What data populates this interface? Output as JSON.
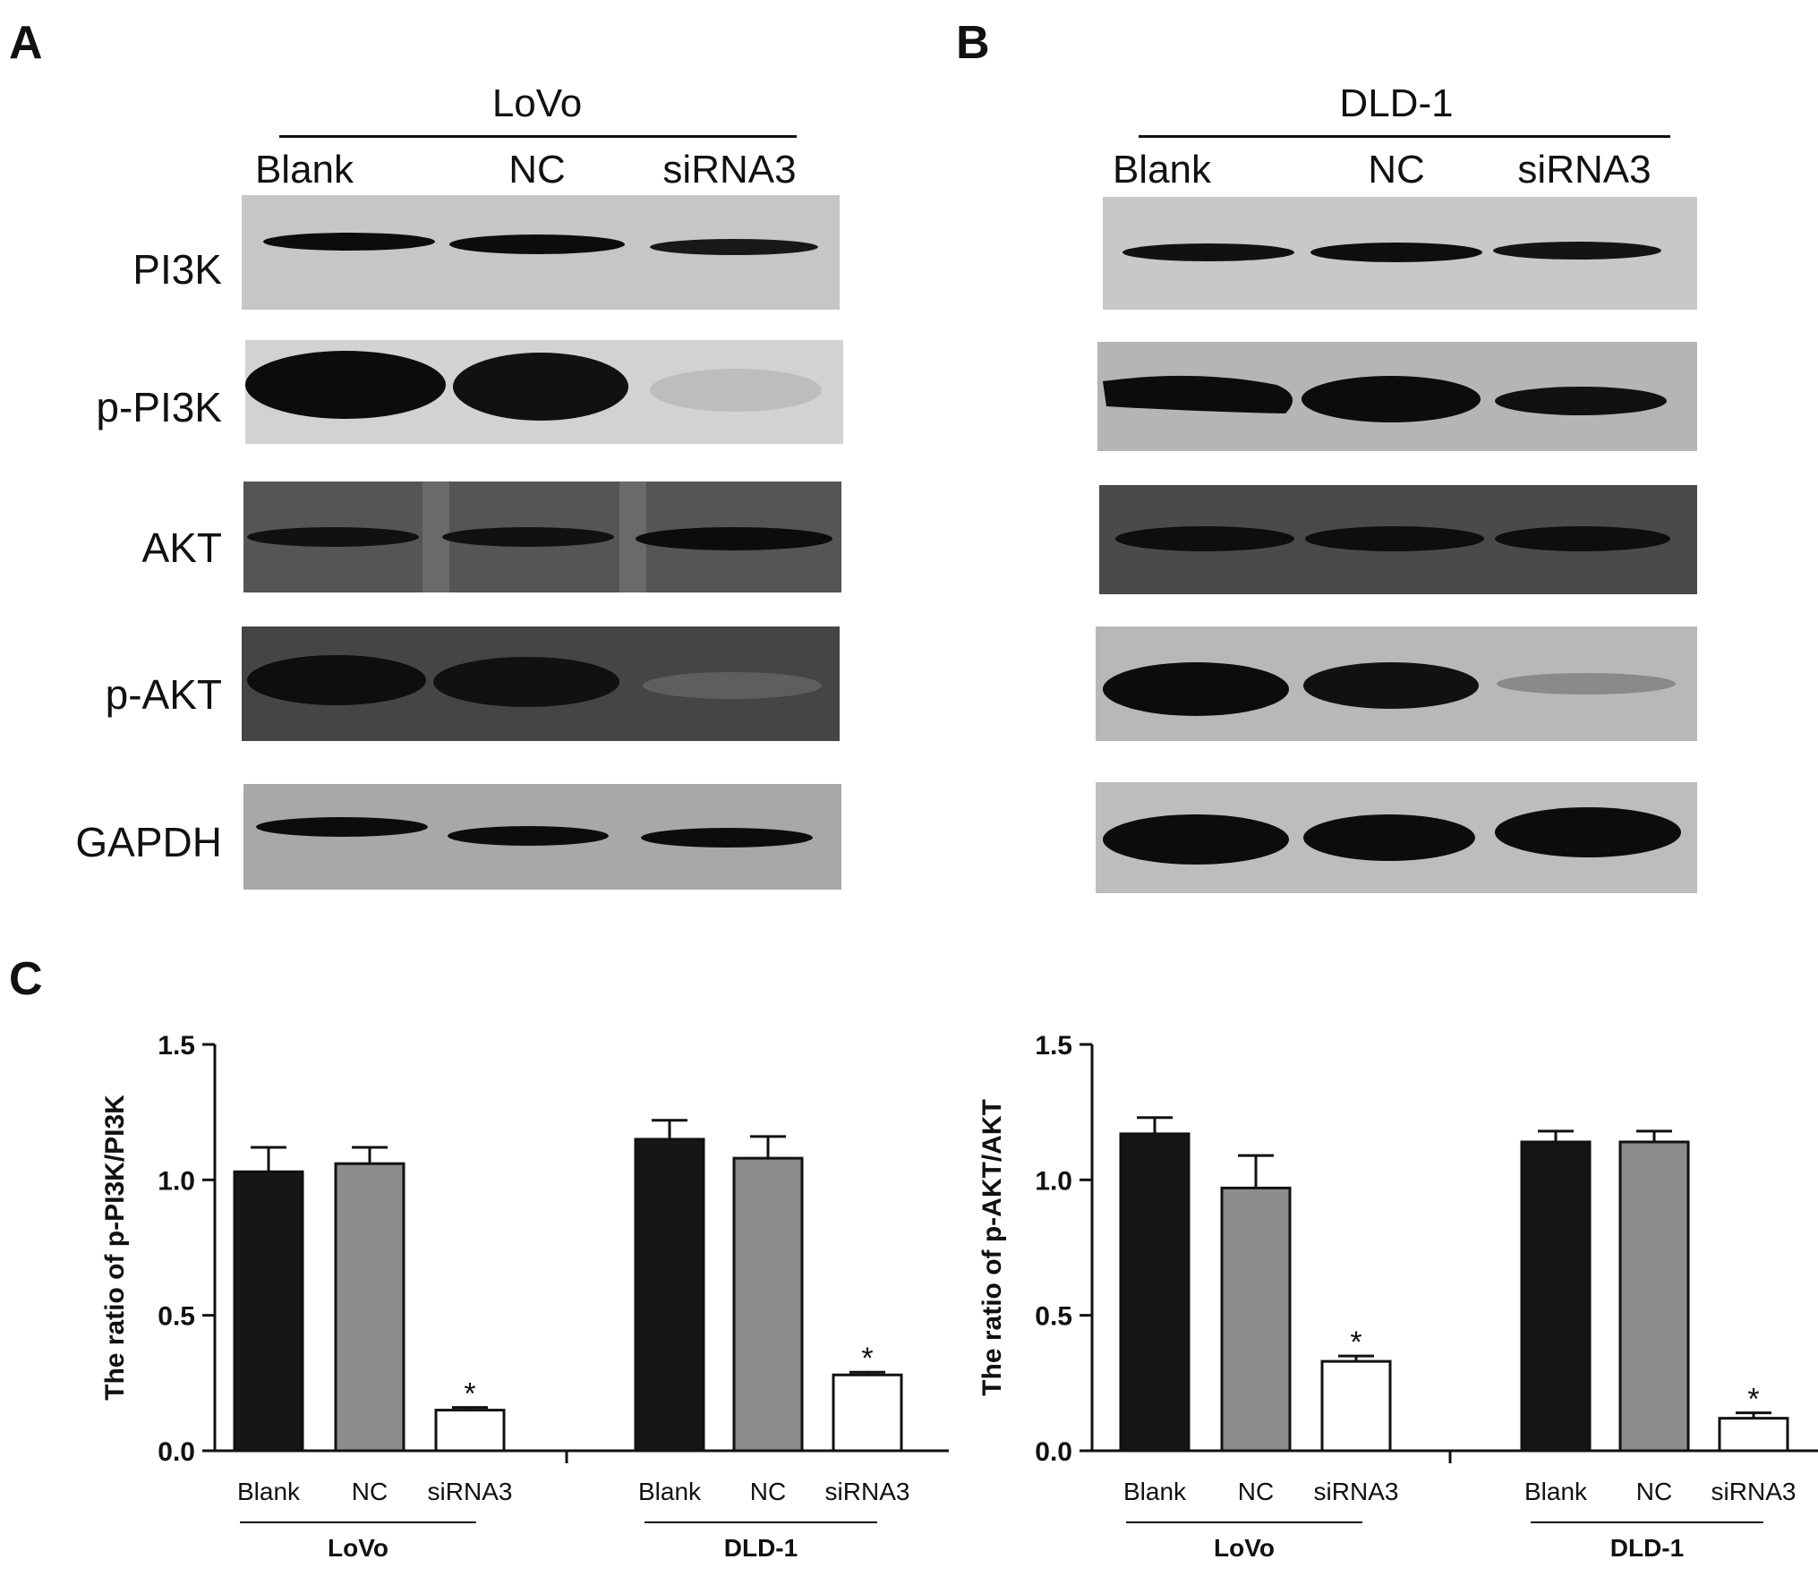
{
  "panels": {
    "A": "A",
    "B": "B",
    "C": "C"
  },
  "blots": [
    {
      "cell_line": "LoVo",
      "lanes": [
        "Blank",
        "NC",
        "siRNA3"
      ],
      "proteins": [
        "PI3K",
        "p-PI3K",
        "AKT",
        "p-AKT",
        "GAPDH"
      ]
    },
    {
      "cell_line": "DLD-1",
      "lanes": [
        "Blank",
        "NC",
        "siRNA3"
      ]
    }
  ],
  "colors": {
    "Blank": "#161616",
    "NC": "#8c8c8c",
    "siRNA3": "#ffffff",
    "band": "#0c0c0c",
    "membrane": "#c4c4c4"
  },
  "chart_data": [
    {
      "type": "bar",
      "ylabel": "The ratio of p-PI3K/PI3K",
      "ylim": [
        0,
        1.5
      ],
      "yticks": [
        "0.0",
        "0.5",
        "1.0",
        "1.5"
      ],
      "grid": false,
      "groups": [
        {
          "name": "LoVo",
          "categories": [
            "Blank",
            "NC",
            "siRNA3"
          ],
          "values": [
            1.03,
            1.06,
            0.15
          ],
          "errors": [
            0.09,
            0.06,
            0.01
          ],
          "annotations": [
            "",
            "",
            "*"
          ]
        },
        {
          "name": "DLD-1",
          "categories": [
            "Blank",
            "NC",
            "siRNA3"
          ],
          "values": [
            1.15,
            1.08,
            0.28
          ],
          "errors": [
            0.07,
            0.08,
            0.01
          ],
          "annotations": [
            "",
            "",
            "*"
          ]
        }
      ]
    },
    {
      "type": "bar",
      "ylabel": "The ratio of p-AKT/AKT",
      "ylim": [
        0,
        1.5
      ],
      "yticks": [
        "0.0",
        "0.5",
        "1.0",
        "1.5"
      ],
      "grid": false,
      "groups": [
        {
          "name": "LoVo",
          "categories": [
            "Blank",
            "NC",
            "siRNA3"
          ],
          "values": [
            1.17,
            0.97,
            0.33
          ],
          "errors": [
            0.06,
            0.12,
            0.02
          ],
          "annotations": [
            "",
            "",
            "*"
          ]
        },
        {
          "name": "DLD-1",
          "categories": [
            "Blank",
            "NC",
            "siRNA3"
          ],
          "values": [
            1.14,
            1.14,
            0.12
          ],
          "errors": [
            0.04,
            0.04,
            0.02
          ],
          "annotations": [
            "",
            "",
            "*"
          ]
        }
      ]
    }
  ]
}
